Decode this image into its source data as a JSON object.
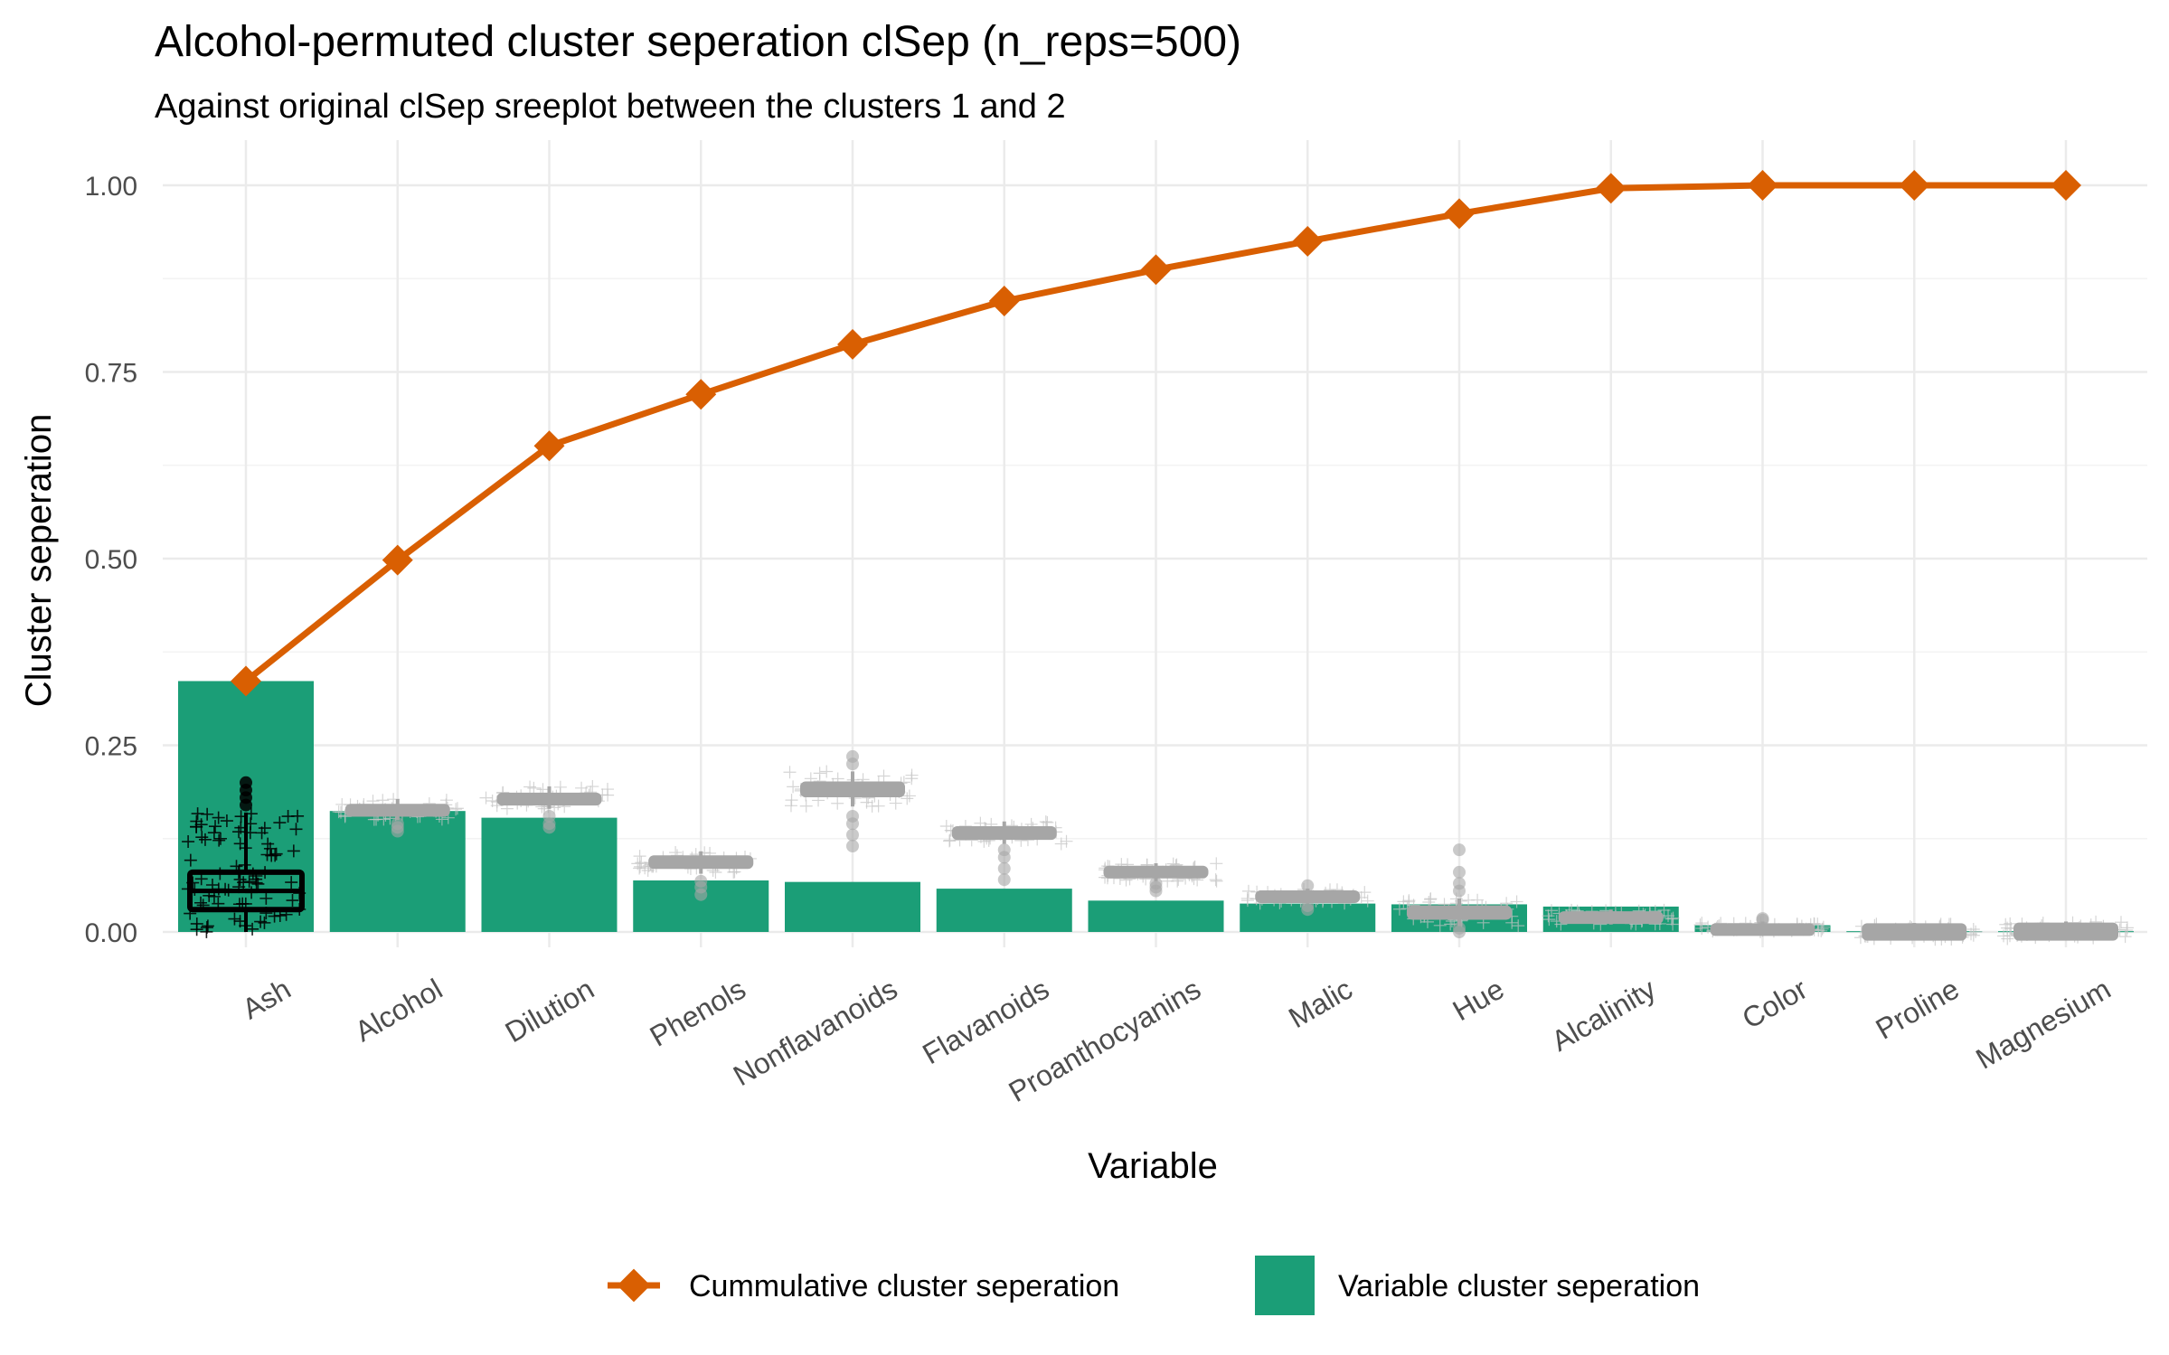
{
  "chart_data": {
    "type": "bar",
    "title": "Alcohol-permuted cluster seperation clSep (n_reps=500)",
    "subtitle": "Against original clSep sreeplot between the clusters 1 and 2",
    "xlabel": "Variable",
    "ylabel": "Cluster seperation",
    "ylim": [
      0,
      1
    ],
    "yticks": [
      "0.00",
      "0.25",
      "0.50",
      "0.75",
      "1.00"
    ],
    "ytick_values": [
      0,
      0.25,
      0.5,
      0.75,
      1.0
    ],
    "grid": true,
    "legend_position": "bottom",
    "categories": [
      "Ash",
      "Alcohol",
      "Dilution",
      "Phenols",
      "Nonflavanoids",
      "Flavanoids",
      "Proanthocyanins",
      "Malic",
      "Hue",
      "Alcalinity",
      "Color",
      "Proline",
      "Magnesium"
    ],
    "series": [
      {
        "name": "Variable cluster seperation",
        "kind": "bar",
        "color": "#1b9e77",
        "values": [
          0.336,
          0.162,
          0.153,
          0.069,
          0.067,
          0.058,
          0.042,
          0.038,
          0.037,
          0.034,
          0.009,
          0.001,
          0.001
        ]
      },
      {
        "name": "Cummulative cluster seperation",
        "kind": "line",
        "color": "#d95f02",
        "values": [
          0.336,
          0.498,
          0.651,
          0.72,
          0.787,
          0.845,
          0.887,
          0.925,
          0.962,
          0.996,
          1.0,
          1.0,
          1.0
        ]
      }
    ],
    "permutation_boxes": {
      "color": "#a6a6a6",
      "highlight_color": "#000000",
      "highlight_category": "Ash",
      "boxes": [
        {
          "category": "Ash",
          "q1": 0.03,
          "median": 0.055,
          "q3": 0.08,
          "whisker_low": 0.0,
          "whisker_high": 0.16,
          "outliers": [
            0.17,
            0.18,
            0.19,
            0.2
          ]
        },
        {
          "category": "Alcohol",
          "q1": 0.158,
          "median": 0.163,
          "q3": 0.168,
          "whisker_low": 0.15,
          "whisker_high": 0.178,
          "outliers": [
            0.135,
            0.14,
            0.145
          ]
        },
        {
          "category": "Dilution",
          "q1": 0.173,
          "median": 0.178,
          "q3": 0.183,
          "whisker_low": 0.165,
          "whisker_high": 0.195,
          "outliers": [
            0.14,
            0.145,
            0.155
          ]
        },
        {
          "category": "Phenols",
          "q1": 0.088,
          "median": 0.094,
          "q3": 0.099,
          "whisker_low": 0.078,
          "whisker_high": 0.108,
          "outliers": [
            0.05,
            0.06,
            0.068
          ]
        },
        {
          "category": "Nonflavanoids",
          "q1": 0.184,
          "median": 0.192,
          "q3": 0.198,
          "whisker_low": 0.168,
          "whisker_high": 0.215,
          "outliers": [
            0.115,
            0.13,
            0.145,
            0.155,
            0.225,
            0.235
          ]
        },
        {
          "category": "Flavanoids",
          "q1": 0.127,
          "median": 0.133,
          "q3": 0.138,
          "whisker_low": 0.118,
          "whisker_high": 0.148,
          "outliers": [
            0.07,
            0.085,
            0.1,
            0.11
          ]
        },
        {
          "category": "Proanthocyanins",
          "q1": 0.077,
          "median": 0.081,
          "q3": 0.085,
          "whisker_low": 0.068,
          "whisker_high": 0.092,
          "outliers": [
            0.055,
            0.06,
            0.065
          ]
        },
        {
          "category": "Malic",
          "q1": 0.045,
          "median": 0.049,
          "q3": 0.052,
          "whisker_low": 0.038,
          "whisker_high": 0.058,
          "outliers": [
            0.03,
            0.035,
            0.062
          ]
        },
        {
          "category": "Hue",
          "q1": 0.02,
          "median": 0.026,
          "q3": 0.032,
          "whisker_low": 0.008,
          "whisker_high": 0.045,
          "outliers": [
            0.0,
            0.005,
            0.055,
            0.065,
            0.08,
            0.11
          ]
        },
        {
          "category": "Alcalinity",
          "q1": 0.016,
          "median": 0.02,
          "q3": 0.024,
          "whisker_low": 0.01,
          "whisker_high": 0.03,
          "outliers": []
        },
        {
          "category": "Color",
          "q1": 0.002,
          "median": 0.005,
          "q3": 0.008,
          "whisker_low": 0.0,
          "whisker_high": 0.014,
          "outliers": [
            0.016,
            0.018
          ]
        },
        {
          "category": "Proline",
          "q1": -0.008,
          "median": 0.0,
          "q3": 0.008,
          "whisker_low": -0.01,
          "whisker_high": 0.012,
          "outliers": []
        },
        {
          "category": "Magnesium",
          "q1": -0.008,
          "median": 0.001,
          "q3": 0.009,
          "whisker_low": -0.01,
          "whisker_high": 0.014,
          "outliers": []
        }
      ]
    }
  }
}
